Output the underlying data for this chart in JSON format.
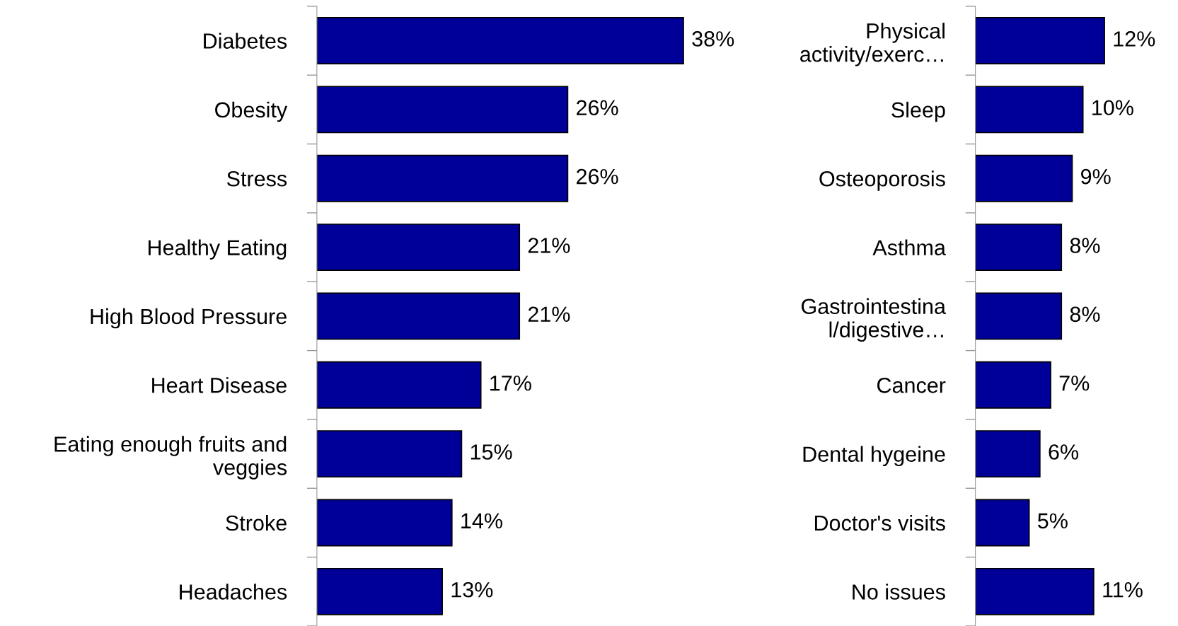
{
  "chart_data": [
    {
      "type": "bar",
      "orientation": "horizontal",
      "color": "#000099",
      "categories": [
        "Diabetes",
        "Obesity",
        "Stress",
        "Healthy Eating",
        "High Blood Pressure",
        "Heart Disease",
        "Eating enough fruits and\nveggies",
        "Stroke",
        "Headaches"
      ],
      "values": [
        38,
        26,
        26,
        21,
        21,
        17,
        15,
        14,
        13
      ],
      "value_labels": [
        "38%",
        "26%",
        "26%",
        "21%",
        "21%",
        "17%",
        "15%",
        "14%",
        "13%"
      ]
    },
    {
      "type": "bar",
      "orientation": "horizontal",
      "color": "#000099",
      "categories": [
        "Physical\nactivity/exerc…",
        "Sleep",
        "Osteoporosis",
        "Asthma",
        "Gastrointestina\nl/digestive…",
        "Cancer",
        "Dental hygeine",
        "Doctor's visits",
        "No issues"
      ],
      "values": [
        12,
        10,
        9,
        8,
        8,
        7,
        6,
        5,
        11
      ],
      "value_labels": [
        "12%",
        "10%",
        "9%",
        "8%",
        "8%",
        "7%",
        "6%",
        "5%",
        "11%"
      ]
    }
  ]
}
